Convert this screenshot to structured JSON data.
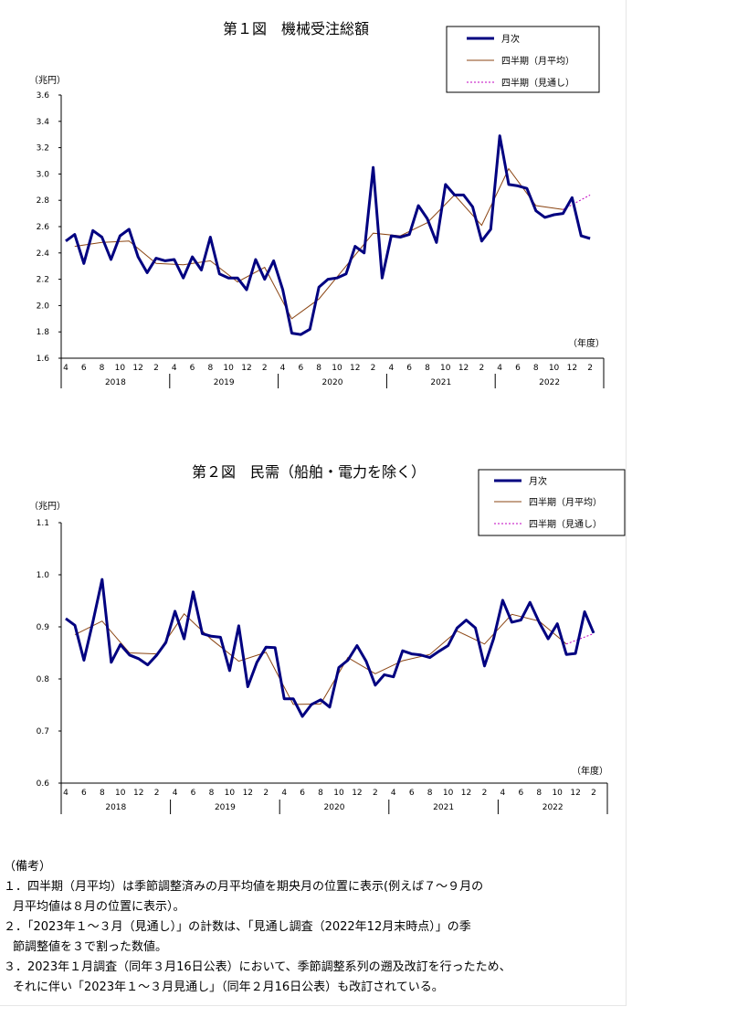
{
  "colors": {
    "monthly": "#000080",
    "quarterly": "#8B4513",
    "outlook": "#C000C0",
    "axis": "#000000"
  },
  "chart_data": [
    {
      "type": "line",
      "title": "第１図　機械受注総額",
      "unit_label": "（兆円）",
      "x_unit_label": "（年度）",
      "ylim": [
        1.6,
        3.6
      ],
      "yticks": [
        "3.6",
        "3.4",
        "3.2",
        "3.0",
        "2.8",
        "2.6",
        "2.4",
        "2.2",
        "2.0",
        "1.8",
        "1.6"
      ],
      "month_ticks": [
        "4",
        "6",
        "8",
        "10",
        "12",
        "2",
        "4",
        "6",
        "8",
        "10",
        "12",
        "2",
        "4",
        "6",
        "8",
        "10",
        "12",
        "2",
        "4",
        "6",
        "8",
        "10",
        "12",
        "2",
        "4",
        "6",
        "8",
        "10",
        "12",
        "2"
      ],
      "years": [
        "2018",
        "2019",
        "2020",
        "2021",
        "2022"
      ],
      "legend": [
        "月次",
        "四半期（月平均）",
        "四半期（見通し）"
      ],
      "x": [
        "2018-04",
        "2018-05",
        "2018-06",
        "2018-07",
        "2018-08",
        "2018-09",
        "2018-10",
        "2018-11",
        "2018-12",
        "2019-01",
        "2019-02",
        "2019-03",
        "2019-04",
        "2019-05",
        "2019-06",
        "2019-07",
        "2019-08",
        "2019-09",
        "2019-10",
        "2019-11",
        "2019-12",
        "2020-01",
        "2020-02",
        "2020-03",
        "2020-04",
        "2020-05",
        "2020-06",
        "2020-07",
        "2020-08",
        "2020-09",
        "2020-10",
        "2020-11",
        "2020-12",
        "2021-01",
        "2021-02",
        "2021-03",
        "2021-04",
        "2021-05",
        "2021-06",
        "2021-07",
        "2021-08",
        "2021-09",
        "2021-10",
        "2021-11",
        "2021-12",
        "2022-01",
        "2022-02",
        "2022-03",
        "2022-04",
        "2022-05",
        "2022-06",
        "2022-07",
        "2022-08",
        "2022-09",
        "2022-10",
        "2022-11",
        "2022-12",
        "2023-01",
        "2023-02",
        "2023-03"
      ],
      "series": [
        {
          "name": "月次",
          "values": [
            2.49,
            2.54,
            2.32,
            2.57,
            2.52,
            2.35,
            2.53,
            2.58,
            2.37,
            2.25,
            2.36,
            2.34,
            2.35,
            2.21,
            2.37,
            2.27,
            2.52,
            2.24,
            2.21,
            2.21,
            2.12,
            2.35,
            2.2,
            2.34,
            2.12,
            1.79,
            1.78,
            1.82,
            2.14,
            2.2,
            2.21,
            2.24,
            2.45,
            2.4,
            3.05,
            2.21,
            2.53,
            2.52,
            2.54,
            2.76,
            2.66,
            2.48,
            2.92,
            2.84,
            2.84,
            2.75,
            2.49,
            2.58,
            3.29,
            2.92,
            2.91,
            2.89,
            2.72,
            2.67,
            2.69,
            2.7,
            2.82,
            2.53,
            2.51,
            null
          ]
        },
        {
          "name": "四半期（月平均）",
          "x": [
            "2018-05",
            "2018-08",
            "2018-11",
            "2019-02",
            "2019-05",
            "2019-08",
            "2019-11",
            "2020-02",
            "2020-05",
            "2020-08",
            "2020-11",
            "2021-02",
            "2021-05",
            "2021-08",
            "2021-11",
            "2022-02",
            "2022-05",
            "2022-08",
            "2022-11"
          ],
          "values": [
            2.45,
            2.48,
            2.49,
            2.32,
            2.31,
            2.34,
            2.18,
            2.29,
            1.9,
            2.05,
            2.3,
            2.55,
            2.53,
            2.63,
            2.84,
            2.61,
            3.04,
            2.76,
            2.73
          ]
        },
        {
          "name": "四半期（見通し）",
          "x": [
            "2022-11",
            "2023-02"
          ],
          "values": [
            2.73,
            2.84
          ]
        }
      ]
    },
    {
      "type": "line",
      "title": "第２図　民需（船舶・電力を除く）",
      "unit_label": "（兆円）",
      "x_unit_label": "（年度）",
      "ylim": [
        0.6,
        1.1
      ],
      "yticks": [
        "1.1",
        "1.0",
        "0.9",
        "0.8",
        "0.7",
        "0.6"
      ],
      "month_ticks": [
        "4",
        "6",
        "8",
        "10",
        "12",
        "2",
        "4",
        "6",
        "8",
        "10",
        "12",
        "2",
        "4",
        "6",
        "8",
        "10",
        "12",
        "2",
        "4",
        "6",
        "8",
        "10",
        "12",
        "2",
        "4",
        "6",
        "8",
        "10",
        "12",
        "2"
      ],
      "years": [
        "2018",
        "2019",
        "2020",
        "2021",
        "2022"
      ],
      "legend": [
        "月次",
        "四半期（月平均）",
        "四半期（見通し）"
      ],
      "x": [
        "2018-04",
        "2018-05",
        "2018-06",
        "2018-07",
        "2018-08",
        "2018-09",
        "2018-10",
        "2018-11",
        "2018-12",
        "2019-01",
        "2019-02",
        "2019-03",
        "2019-04",
        "2019-05",
        "2019-06",
        "2019-07",
        "2019-08",
        "2019-09",
        "2019-10",
        "2019-11",
        "2019-12",
        "2020-01",
        "2020-02",
        "2020-03",
        "2020-04",
        "2020-05",
        "2020-06",
        "2020-07",
        "2020-08",
        "2020-09",
        "2020-10",
        "2020-11",
        "2020-12",
        "2021-01",
        "2021-02",
        "2021-03",
        "2021-04",
        "2021-05",
        "2021-06",
        "2021-07",
        "2021-08",
        "2021-09",
        "2021-10",
        "2021-11",
        "2021-12",
        "2022-01",
        "2022-02",
        "2022-03",
        "2022-04",
        "2022-05",
        "2022-06",
        "2022-07",
        "2022-08",
        "2022-09",
        "2022-10",
        "2022-11",
        "2022-12",
        "2023-01",
        "2023-02",
        "2023-03"
      ],
      "series": [
        {
          "name": "月次",
          "values": [
            0.916,
            0.903,
            0.836,
            0.911,
            0.991,
            0.832,
            0.866,
            0.846,
            0.839,
            0.827,
            0.846,
            0.87,
            0.93,
            0.877,
            0.967,
            0.887,
            0.882,
            0.88,
            0.816,
            0.902,
            0.785,
            0.832,
            0.861,
            0.86,
            0.762,
            0.762,
            0.728,
            0.751,
            0.76,
            0.746,
            0.822,
            0.836,
            0.864,
            0.834,
            0.788,
            0.808,
            0.804,
            0.854,
            0.848,
            0.846,
            0.841,
            0.853,
            0.864,
            0.898,
            0.913,
            0.898,
            0.825,
            0.877,
            0.951,
            0.909,
            0.913,
            0.947,
            0.909,
            0.877,
            0.906,
            0.847,
            0.849,
            0.929,
            0.888,
            null
          ]
        },
        {
          "name": "四半期（月平均）",
          "x": [
            "2018-05",
            "2018-08",
            "2018-11",
            "2019-02",
            "2019-05",
            "2019-08",
            "2019-11",
            "2020-02",
            "2020-05",
            "2020-08",
            "2020-11",
            "2021-02",
            "2021-05",
            "2021-08",
            "2021-11",
            "2022-02",
            "2022-05",
            "2022-08",
            "2022-11"
          ],
          "values": [
            0.885,
            0.911,
            0.85,
            0.848,
            0.925,
            0.876,
            0.834,
            0.851,
            0.751,
            0.752,
            0.841,
            0.81,
            0.835,
            0.847,
            0.892,
            0.867,
            0.924,
            0.911,
            0.867
          ]
        },
        {
          "name": "四半期（見通し）",
          "x": [
            "2022-11",
            "2023-02"
          ],
          "values": [
            0.867,
            0.887
          ]
        }
      ]
    }
  ],
  "notes": {
    "heading": "（備考）",
    "items": [
      "１．四半期（月平均）は季節調整済みの月平均値を期央月の位置に表示(例えば７～９月の",
      "月平均値は８月の位置に表示）。",
      "２．「2023年１～３月（見通し）」の計数は、「見通し調査（2022年12月末時点）」の季",
      "節調整値を３で割った数値。",
      "３．2023年１月調査（同年３月16日公表）において、季節調整系列の遡及改訂を行ったため、",
      "それに伴い「2023年１～３月見通し」（同年２月16日公表）も改訂されている。"
    ]
  }
}
